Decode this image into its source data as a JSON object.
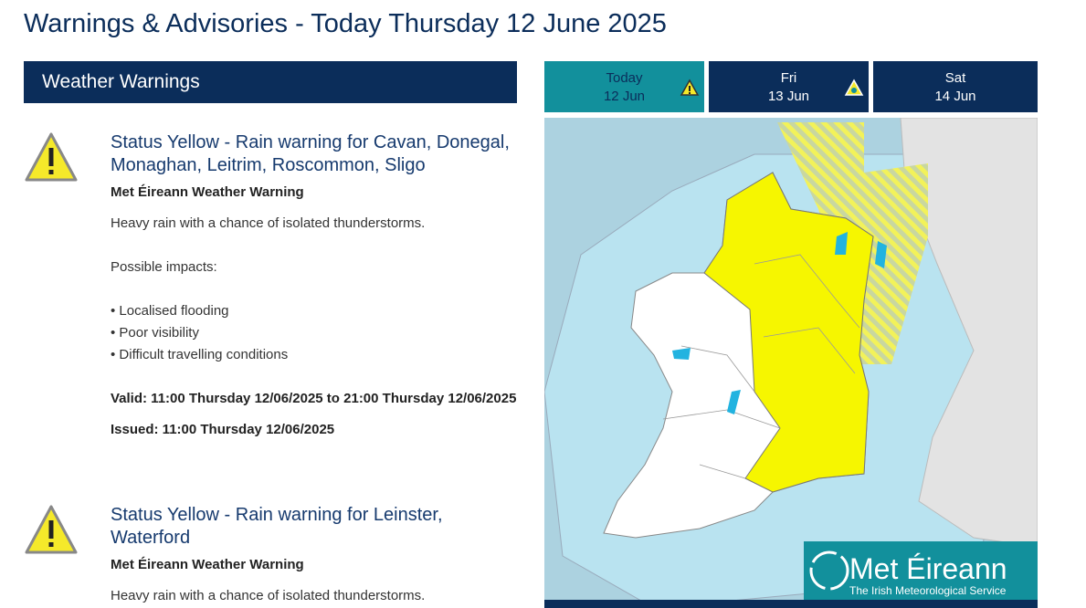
{
  "header": {
    "title": "Warnings & Advisories - Today Thursday 12 June 2025"
  },
  "section": {
    "title": "Weather Warnings"
  },
  "warnings": [
    {
      "title": "Status Yellow - Rain warning for Cavan, Donegal, Monaghan, Leitrim, Roscommon, Sligo",
      "source": "Met Éireann Weather Warning",
      "description": "Heavy rain with a chance of isolated thunderstorms.",
      "impacts_heading": "Possible impacts:",
      "impacts": [
        "• Localised flooding",
        "• Poor visibility",
        "• Difficult travelling conditions"
      ],
      "valid": "Valid: 11:00 Thursday 12/06/2025 to 21:00 Thursday 12/06/2025",
      "issued": "Issued: 11:00 Thursday 12/06/2025"
    },
    {
      "title": "Status Yellow - Rain warning for Leinster, Waterford",
      "source": "Met Éireann Weather Warning",
      "description": "Heavy rain with a chance of isolated thunderstorms."
    }
  ],
  "tabs": [
    {
      "day": "Today",
      "date": "12 Jun"
    },
    {
      "day": "Fri",
      "date": "13 Jun"
    },
    {
      "day": "Sat",
      "date": "14 Jun"
    }
  ],
  "logo": {
    "name": "Met Éireann",
    "tagline": "The Irish Meteorological Service"
  }
}
